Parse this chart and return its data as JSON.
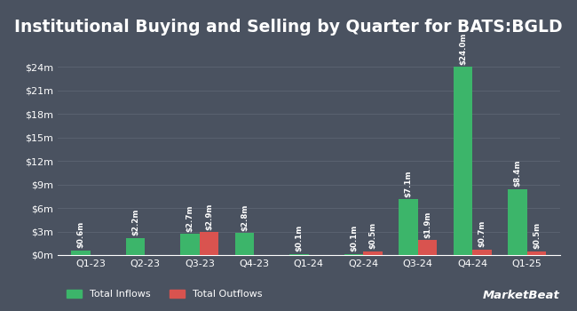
{
  "title": "Institutional Buying and Selling by Quarter for BATS:BGLD",
  "quarters": [
    "Q1-23",
    "Q2-23",
    "Q3-23",
    "Q4-23",
    "Q1-24",
    "Q2-24",
    "Q3-24",
    "Q4-24",
    "Q1-25"
  ],
  "inflows": [
    0.6,
    2.2,
    2.7,
    2.8,
    0.1,
    0.1,
    7.1,
    24.0,
    8.4
  ],
  "outflows": [
    0.0,
    0.0,
    2.9,
    0.0,
    0.0,
    0.5,
    1.9,
    0.7,
    0.5
  ],
  "inflow_labels": [
    "$0.6m",
    "$2.2m",
    "$2.7m",
    "$2.8m",
    "$0.1m",
    "$0.1m",
    "$7.1m",
    "$24.0m",
    "$8.4m"
  ],
  "outflow_labels": [
    "",
    "",
    "$2.9m",
    "",
    "",
    "$0.5m",
    "$1.9m",
    "$0.7m",
    "$0.5m"
  ],
  "inflow_color": "#3cb56a",
  "outflow_color": "#d9534f",
  "bg_color": "#4a5260",
  "text_color": "#ffffff",
  "grid_color": "#5a6270",
  "yticks": [
    0,
    3,
    6,
    9,
    12,
    15,
    18,
    21,
    24
  ],
  "ytick_labels": [
    "$0m",
    "$3m",
    "$6m",
    "$9m",
    "$12m",
    "$15m",
    "$18m",
    "$21m",
    "$24m"
  ],
  "ylim": [
    0,
    27
  ],
  "bar_width": 0.35,
  "title_fontsize": 13.5,
  "label_fontsize": 6.2,
  "tick_fontsize": 8,
  "legend_fontsize": 8,
  "watermark": "MarketBeat"
}
